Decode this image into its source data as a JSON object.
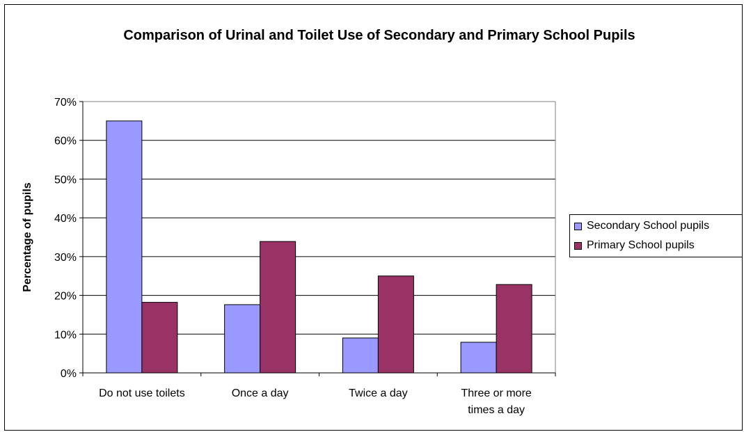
{
  "chart_data": {
    "type": "bar",
    "title": "Comparison of Urinal and Toilet Use of Secondary and Primary School Pupils",
    "xlabel": "",
    "ylabel": "Percentage of pupils",
    "categories": [
      "Do not use toilets",
      "Once a day",
      "Twice a day",
      "Three or more times a day"
    ],
    "category_label_lines": [
      [
        "Do not use toilets"
      ],
      [
        "Once a day"
      ],
      [
        "Twice a day"
      ],
      [
        "Three or more",
        "times a day"
      ]
    ],
    "series": [
      {
        "name": "Secondary School pupils",
        "color": "#9999ff",
        "values": [
          0.65,
          0.176,
          0.09,
          0.079
        ]
      },
      {
        "name": "Primary School pupils",
        "color": "#993366",
        "values": [
          0.182,
          0.339,
          0.25,
          0.228
        ]
      }
    ],
    "ylim": [
      0,
      0.7
    ],
    "yticks": [
      0,
      0.1,
      0.2,
      0.3,
      0.4,
      0.5,
      0.6,
      0.7
    ],
    "ytick_labels": [
      "0%",
      "10%",
      "20%",
      "30%",
      "40%",
      "50%",
      "60%",
      "70%"
    ],
    "grid": true,
    "legend_position": "right"
  }
}
